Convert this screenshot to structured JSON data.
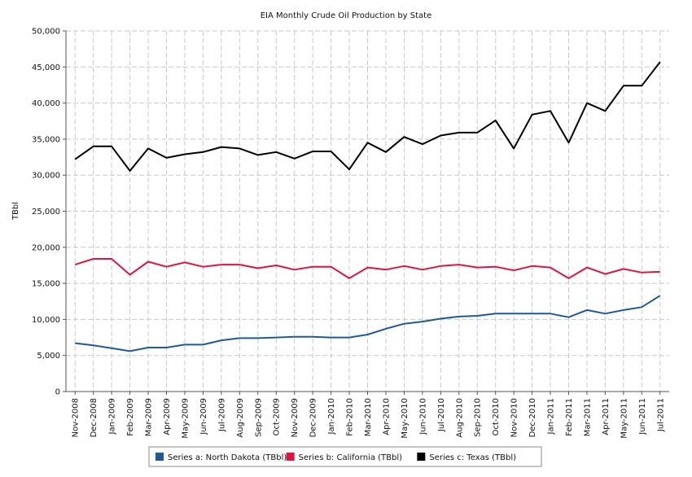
{
  "chart_data": {
    "type": "line",
    "title": "EIA Monthly Crude Oil Production by State",
    "xlabel": "",
    "ylabel": "TBbl",
    "ylim": [
      0,
      50000
    ],
    "yticks": [
      "0",
      "5,000",
      "10,000",
      "15,000",
      "20,000",
      "25,000",
      "30,000",
      "35,000",
      "40,000",
      "45,000",
      "50,000"
    ],
    "grid": true,
    "legend_position": "bottom",
    "categories": [
      "Nov-2008",
      "Dec-2008",
      "Jan-2009",
      "Feb-2009",
      "Mar-2009",
      "Apr-2009",
      "May-2009",
      "Jun-2009",
      "Jul-2009",
      "Aug-2009",
      "Sep-2009",
      "Oct-2009",
      "Nov-2009",
      "Dec-2009",
      "Jan-2010",
      "Feb-2010",
      "Mar-2010",
      "Apr-2010",
      "May-2010",
      "Jun-2010",
      "Jul-2010",
      "Aug-2010",
      "Sep-2010",
      "Oct-2010",
      "Nov-2010",
      "Dec-2010",
      "Jan-2011",
      "Feb-2011",
      "Mar-2011",
      "Apr-2011",
      "May-2011",
      "Jun-2011",
      "Jul-2011"
    ],
    "series": [
      {
        "name": "Series a: North Dakota (TBbl)",
        "color": "#1f5a96",
        "values": [
          6700,
          6400,
          6000,
          5600,
          6100,
          6100,
          6500,
          6500,
          7100,
          7400,
          7400,
          7500,
          7600,
          7600,
          7500,
          7500,
          7900,
          8700,
          9400,
          9700,
          10100,
          10400,
          10500,
          10800,
          10800,
          10800,
          10800,
          10300,
          11300,
          10800,
          11300,
          11700,
          13300
        ]
      },
      {
        "name": "Series b: California (TBbl)",
        "color": "#e0153f",
        "values": [
          17600,
          18400,
          18400,
          16200,
          18000,
          17300,
          17900,
          17300,
          17600,
          17600,
          17100,
          17500,
          16900,
          17300,
          17300,
          15700,
          17200,
          16900,
          17400,
          16900,
          17400,
          17600,
          17200,
          17300,
          16800,
          17400,
          17200,
          15700,
          17200,
          16300,
          17000,
          16500,
          16600
        ]
      },
      {
        "name": "Series c: Texas (TBbl)",
        "color": "#000000",
        "values": [
          32200,
          34000,
          34000,
          30600,
          33700,
          32400,
          32900,
          33200,
          33900,
          33700,
          32800,
          33200,
          32300,
          33300,
          33300,
          30800,
          34500,
          33200,
          35300,
          34300,
          35500,
          35900,
          35900,
          37600,
          33700,
          38400,
          38900,
          34500,
          40000,
          38900,
          42400,
          42400,
          45700
        ]
      }
    ]
  }
}
